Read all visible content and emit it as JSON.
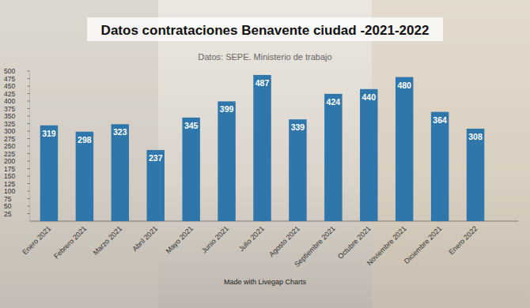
{
  "chart_data": {
    "type": "bar",
    "title": "Datos contrataciones Benavente ciudad -2021-2022",
    "subtitle": "Datos: SEPE. Ministerio de trabajo",
    "annotations": [
      "Made with Livegap Charts"
    ],
    "categories": [
      "Enero 2021",
      "Febrero 2021",
      "Marzo 2021",
      "Abril 2021",
      "Mayo 2021",
      "Junio 2021",
      "Julio 2021",
      "Agosto 2021",
      "Septiembre 2021",
      "Octubre 2021",
      "Noviembre 2021",
      "Diciembre 2021",
      "Enero 2022"
    ],
    "values": [
      319,
      298,
      323,
      237,
      345,
      399,
      487,
      339,
      424,
      440,
      480,
      364,
      308
    ],
    "color": "#2f77aa",
    "ylim": [
      0,
      500
    ],
    "yticks": [
      25,
      50,
      75,
      100,
      125,
      150,
      175,
      200,
      225,
      250,
      275,
      300,
      325,
      350,
      375,
      400,
      425,
      450,
      475,
      500
    ],
    "grid": false,
    "data_labels": true
  }
}
